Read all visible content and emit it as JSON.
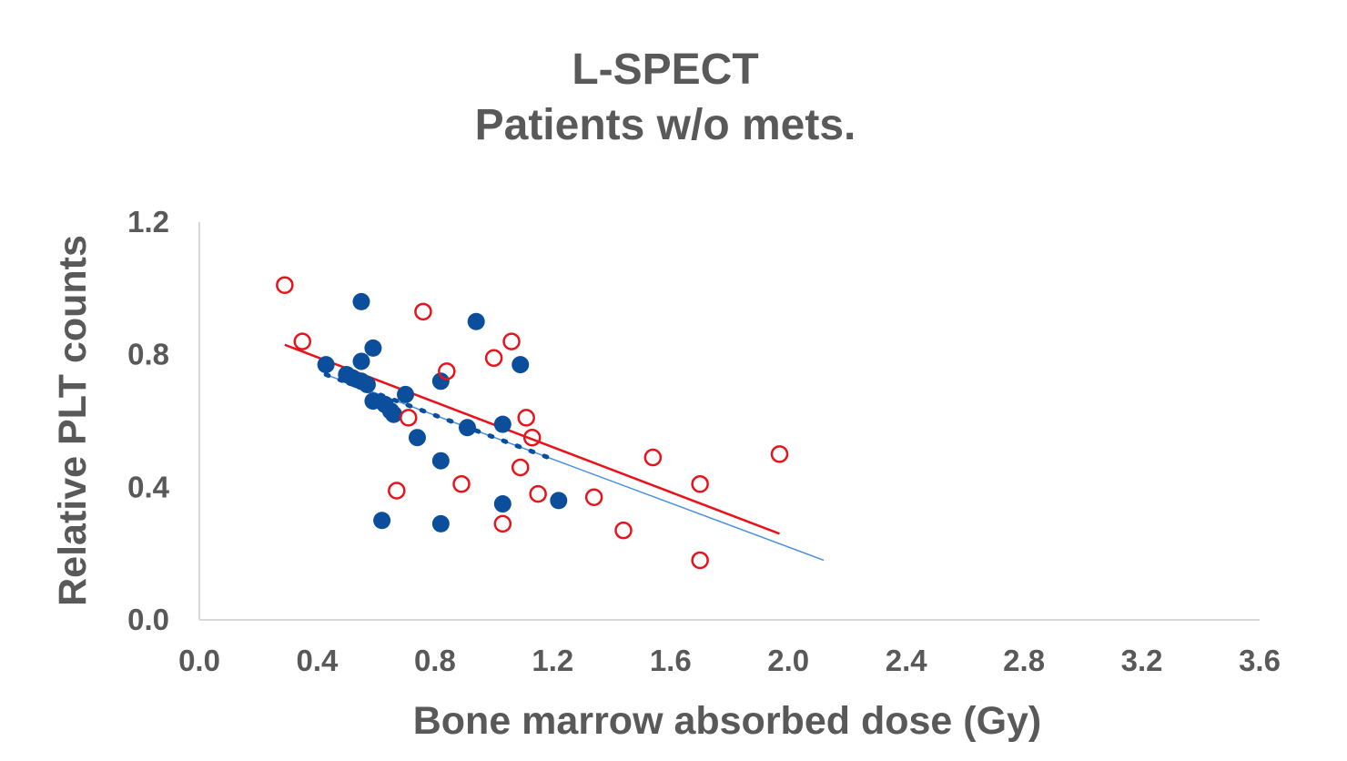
{
  "chart_data": {
    "type": "scatter",
    "title_line1": "L-SPECT",
    "title_line2": "Patients w/o mets.",
    "xlabel": "Bone marrow absorbed dose (Gy)",
    "ylabel": "Relative PLT counts",
    "xlim": [
      0.0,
      3.6
    ],
    "ylim": [
      0.0,
      1.2
    ],
    "x_ticks": [
      "0.0",
      "0.4",
      "0.8",
      "1.2",
      "1.6",
      "2.0",
      "2.4",
      "2.8",
      "3.2",
      "3.6"
    ],
    "y_ticks": [
      "0.0",
      "0.4",
      "0.8",
      "1.2"
    ],
    "colors": {
      "filled_series": "#0b4f9c",
      "open_series": "#e8131b",
      "filled_trend": "#4a90e2",
      "open_trend": "#e8131b",
      "axis": "#d9d9d9",
      "text": "#595959"
    },
    "series": [
      {
        "name": "filled",
        "marker": "filled-circle",
        "points": [
          [
            0.55,
            0.96
          ],
          [
            0.94,
            0.9
          ],
          [
            1.09,
            0.77
          ],
          [
            0.59,
            0.82
          ],
          [
            0.55,
            0.78
          ],
          [
            0.43,
            0.77
          ],
          [
            0.5,
            0.74
          ],
          [
            0.52,
            0.73
          ],
          [
            0.55,
            0.72
          ],
          [
            0.57,
            0.71
          ],
          [
            0.82,
            0.72
          ],
          [
            0.7,
            0.68
          ],
          [
            0.59,
            0.66
          ],
          [
            0.63,
            0.65
          ],
          [
            0.65,
            0.63
          ],
          [
            0.66,
            0.62
          ],
          [
            1.03,
            0.59
          ],
          [
            0.91,
            0.58
          ],
          [
            0.74,
            0.55
          ],
          [
            0.82,
            0.48
          ],
          [
            1.03,
            0.35
          ],
          [
            1.22,
            0.36
          ],
          [
            0.62,
            0.3
          ],
          [
            0.82,
            0.29
          ]
        ]
      },
      {
        "name": "open",
        "marker": "open-circle",
        "points": [
          [
            0.29,
            1.01
          ],
          [
            0.35,
            0.84
          ],
          [
            0.76,
            0.93
          ],
          [
            1.06,
            0.84
          ],
          [
            1.0,
            0.79
          ],
          [
            0.84,
            0.75
          ],
          [
            0.71,
            0.61
          ],
          [
            1.11,
            0.61
          ],
          [
            1.13,
            0.55
          ],
          [
            1.54,
            0.49
          ],
          [
            1.97,
            0.5
          ],
          [
            1.09,
            0.46
          ],
          [
            0.89,
            0.41
          ],
          [
            1.7,
            0.41
          ],
          [
            0.67,
            0.39
          ],
          [
            1.15,
            0.38
          ],
          [
            1.34,
            0.37
          ],
          [
            1.03,
            0.29
          ],
          [
            1.44,
            0.27
          ],
          [
            1.7,
            0.18
          ]
        ]
      }
    ],
    "trendlines": [
      {
        "name": "filled-fit",
        "style": "dotted-then-solid",
        "x0": 0.43,
        "y0": 0.74,
        "x1": 2.12,
        "y1": 0.18,
        "dotted_until": 1.21
      },
      {
        "name": "open-fit",
        "style": "solid",
        "x0": 0.29,
        "y0": 0.83,
        "x1": 1.97,
        "y1": 0.26
      }
    ]
  }
}
